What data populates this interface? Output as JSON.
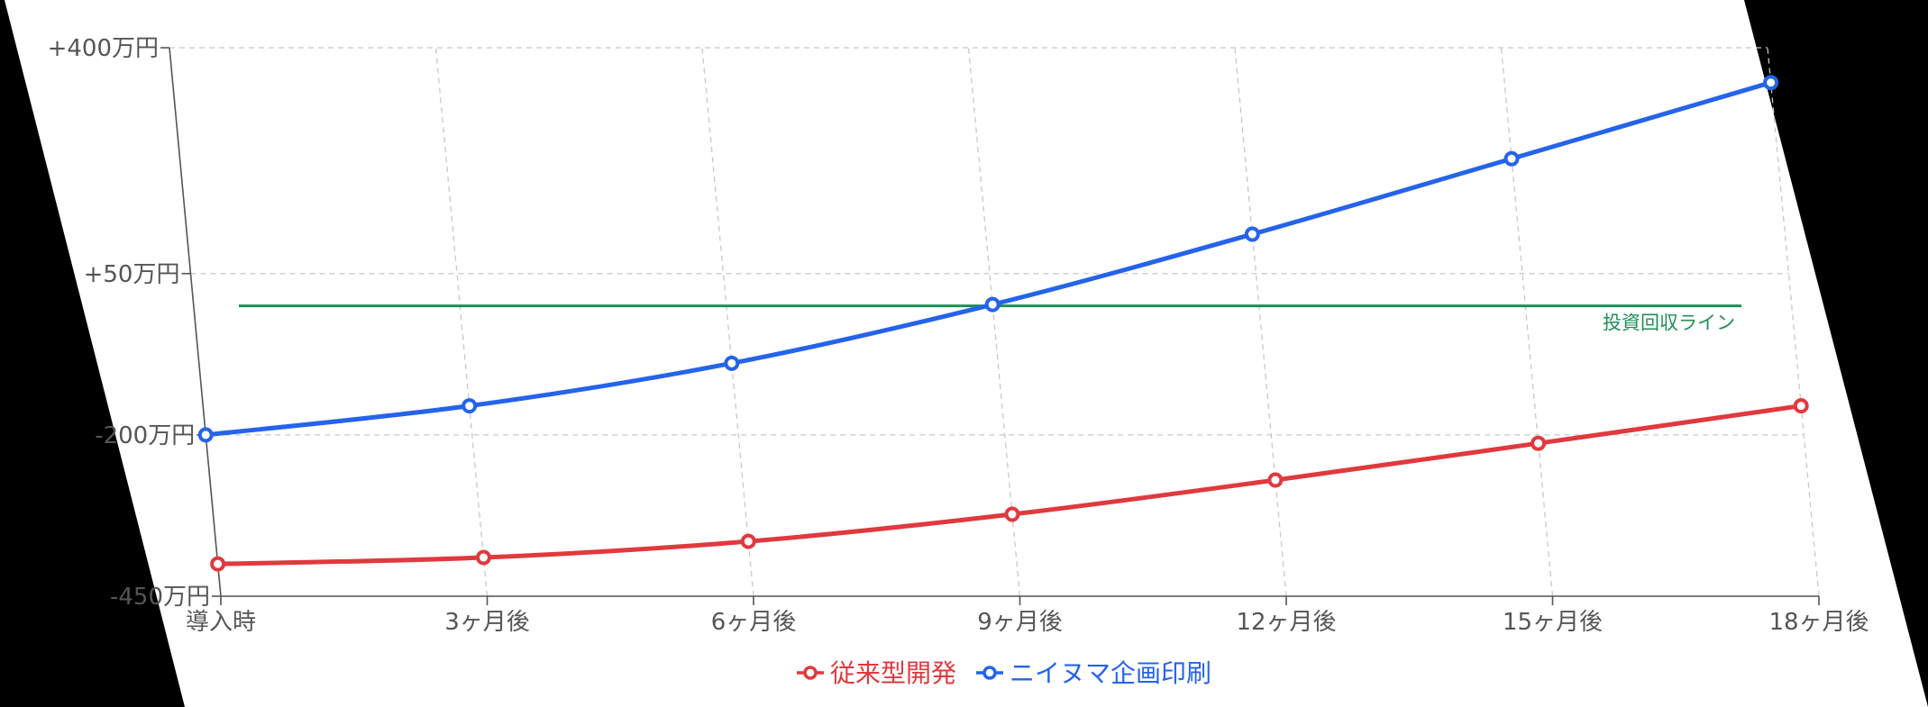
{
  "chart_data": {
    "type": "line",
    "categories": [
      "導入時",
      "3ヶ月後",
      "6ヶ月後",
      "9ヶ月後",
      "12ヶ月後",
      "15ヶ月後",
      "18ヶ月後"
    ],
    "y_ticks": [
      {
        "value": 400,
        "label": "+400万円"
      },
      {
        "value": 50,
        "label": "+50万円"
      },
      {
        "value": -200,
        "label": "-200万円"
      },
      {
        "value": -450,
        "label": "-450万円"
      }
    ],
    "ylim": [
      -450,
      400
    ],
    "grid": true,
    "legend_position": "bottom",
    "series": [
      {
        "name": "従来型開発",
        "color": "#e0393e",
        "values": [
          -400,
          -390,
          -365,
          -323,
          -270,
          -213,
          -155
        ]
      },
      {
        "name": "ニイヌマ企画印刷",
        "color": "#2563eb",
        "values": [
          -200,
          -155,
          -89,
          2,
          111,
          228,
          346
        ]
      }
    ],
    "reference_line": {
      "value": 0,
      "label": "投資回収ライン",
      "color": "#1f8f55"
    },
    "colors": {
      "background": "#ffffff",
      "axis": "#555555",
      "grid": "#c8c8c8"
    }
  }
}
